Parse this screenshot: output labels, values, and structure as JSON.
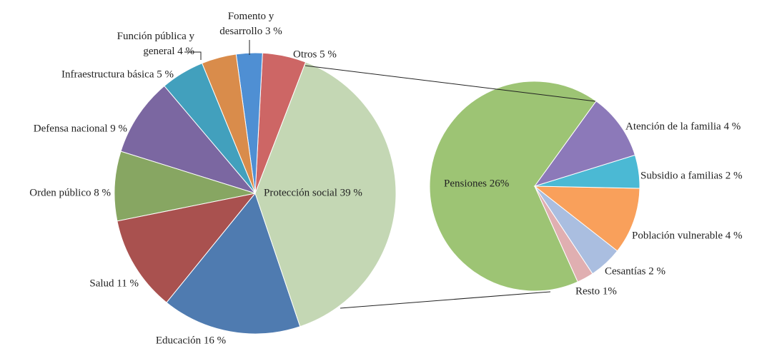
{
  "chart_data": [
    {
      "type": "pie",
      "categories": [
        "Protección social",
        "Educación",
        "Salud",
        "Orden público",
        "Defensa nacional",
        "Infraestructura básica",
        "Función pública y general",
        "Fomento y desarrollo",
        "Otros"
      ],
      "values": [
        39,
        16,
        11,
        8,
        9,
        5,
        4,
        3,
        5
      ],
      "value_labels": [
        "39 %",
        "16 %",
        "11 %",
        "8 %",
        "9 %",
        "5 %",
        "4 %",
        "3 %",
        "5 %"
      ],
      "colors": [
        "#c4d7b4",
        "#4f7bb0",
        "#a9514f",
        "#87a662",
        "#7b67a1",
        "#42a0bd",
        "#d98c4b",
        "#4f8fd3",
        "#cd6665"
      ]
    },
    {
      "type": "pie",
      "categories": [
        "Atención de la familia",
        "Subsidio a familias",
        "Población vulnerable",
        "Cesantías",
        "Resto",
        "Pensiones"
      ],
      "values": [
        4,
        2,
        4,
        2,
        1,
        26
      ],
      "value_labels": [
        "4 %",
        "2 %",
        "4 %",
        "2 %",
        "1%",
        "26%"
      ],
      "colors": [
        "#8c79b9",
        "#4bb9d4",
        "#f9a05b",
        "#aabee0",
        "#e0afb1",
        "#9dc474"
      ]
    }
  ]
}
